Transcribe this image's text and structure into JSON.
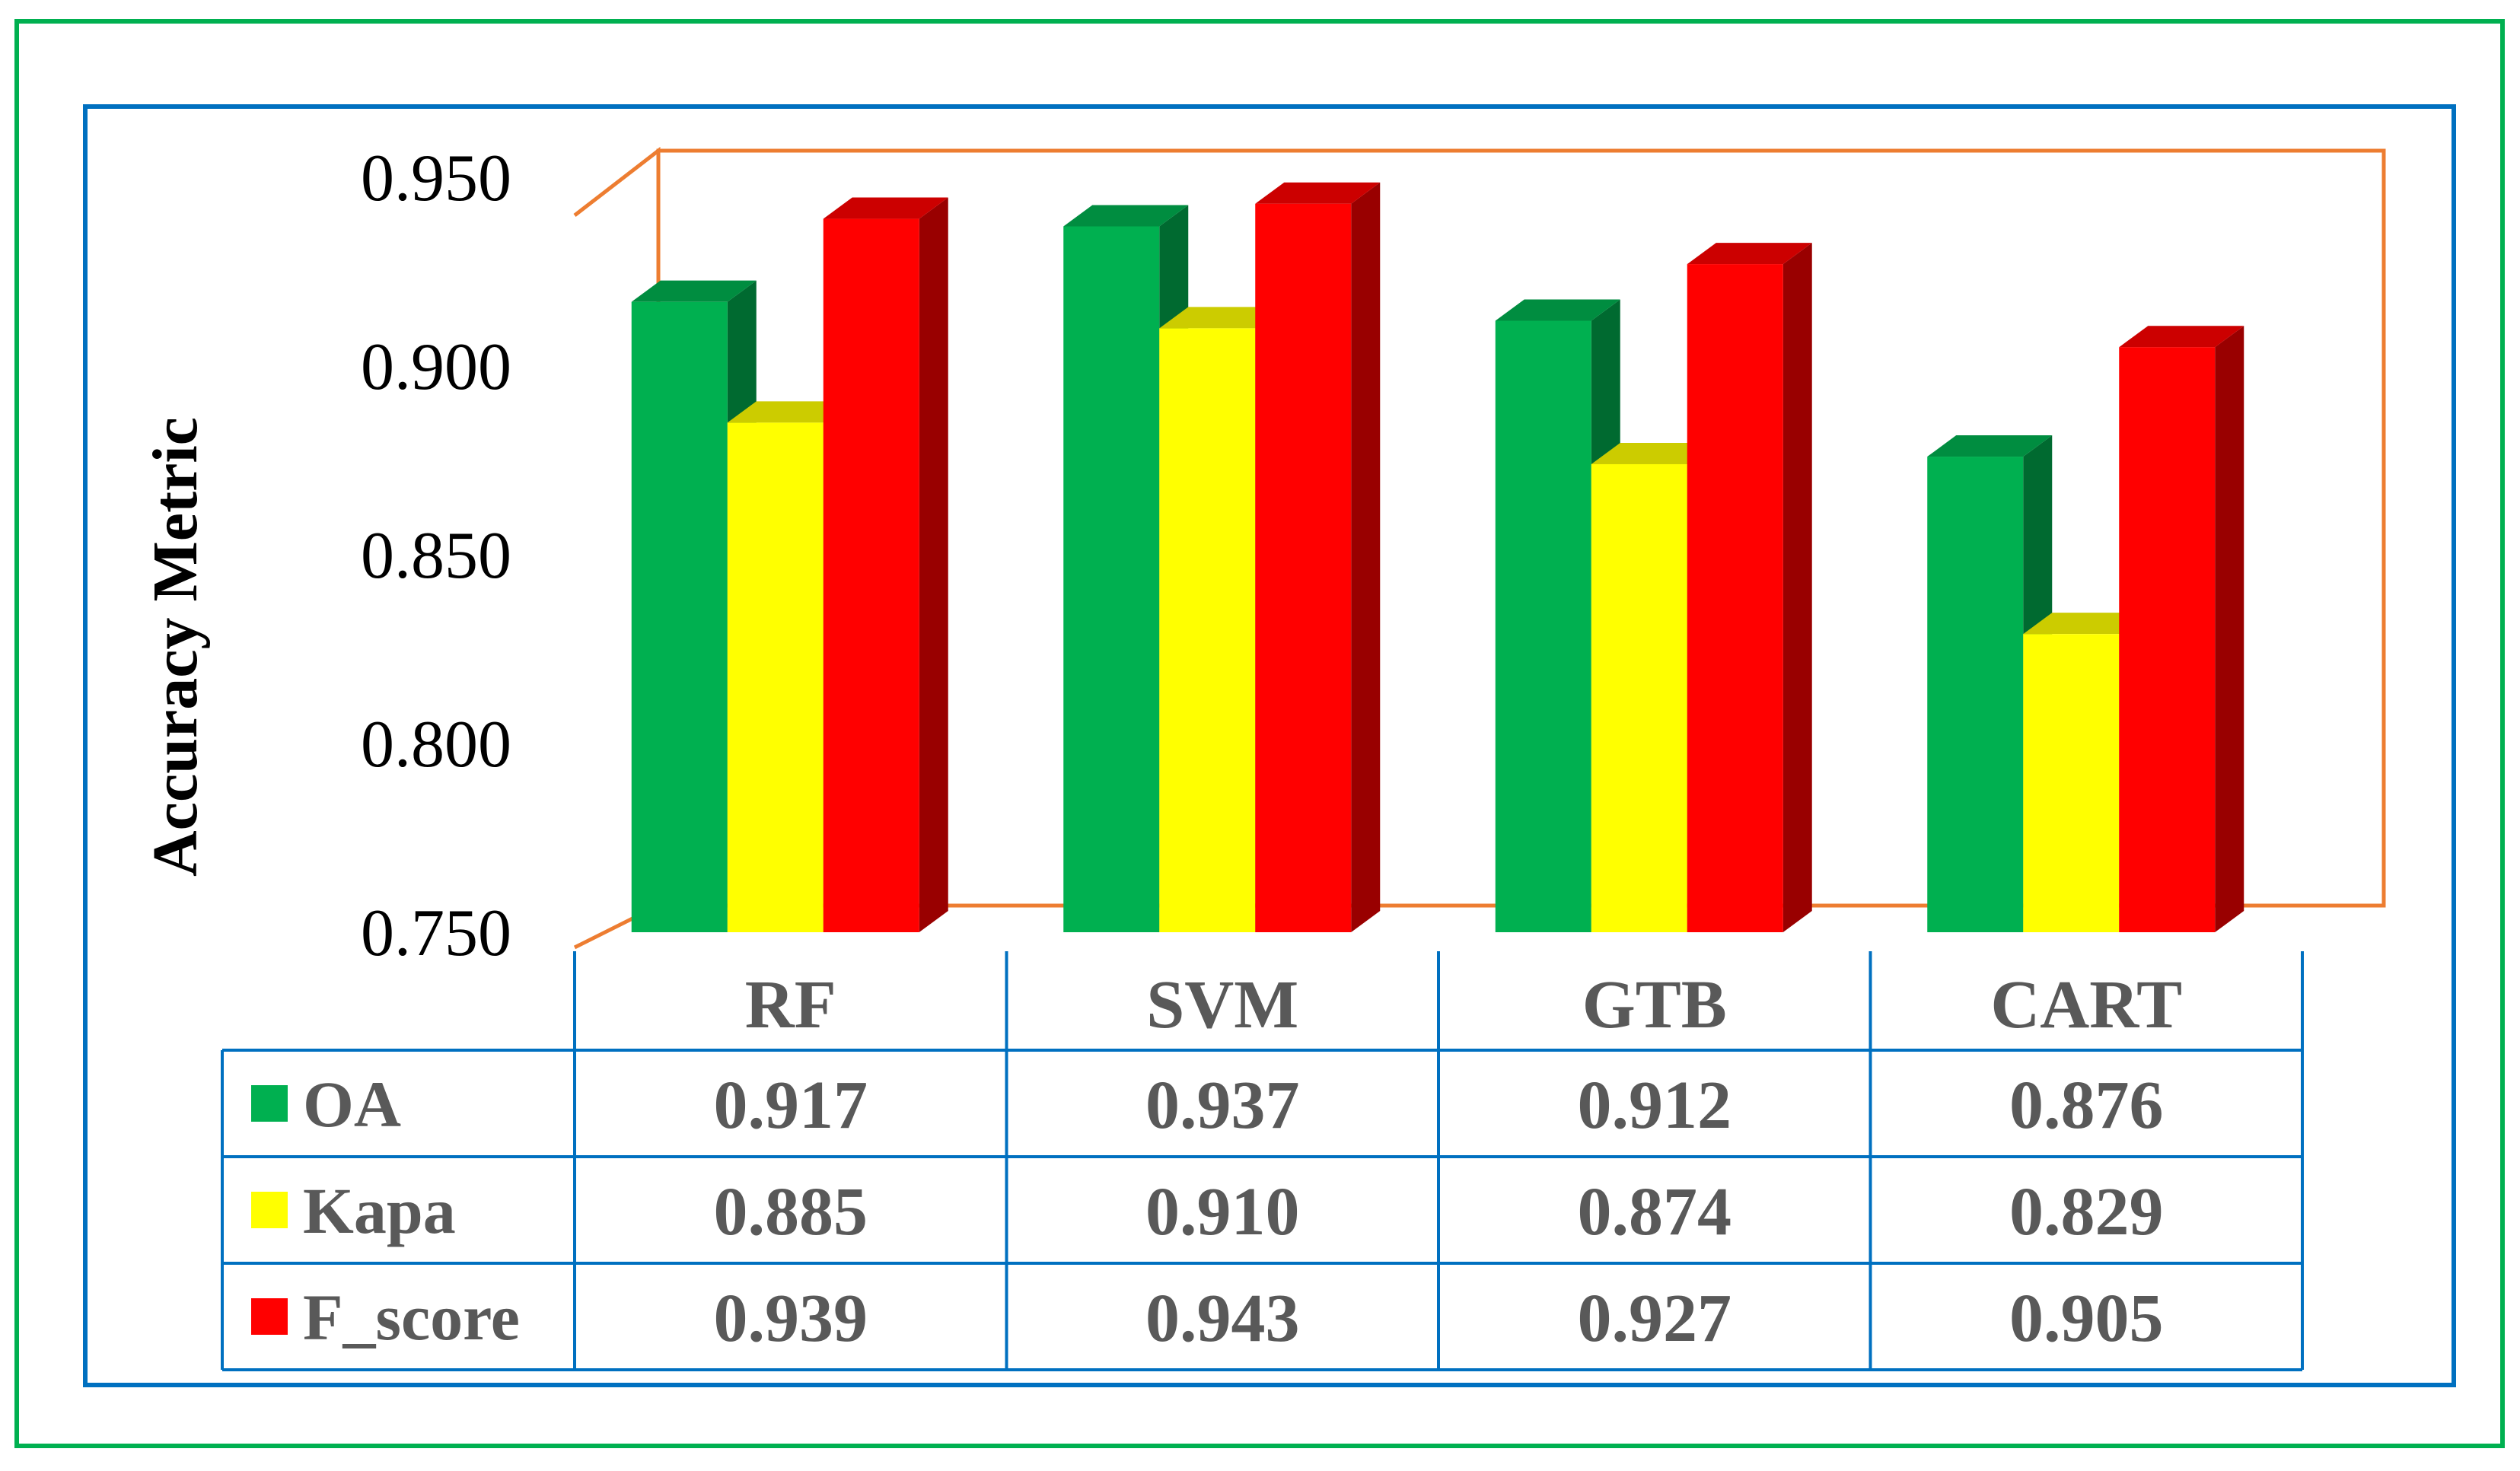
{
  "chart_data": {
    "type": "bar",
    "title": "",
    "xlabel": "",
    "ylabel": "Accuracy Metric",
    "ylim": [
      0.75,
      0.95
    ],
    "yticks": [
      "0.750",
      "0.800",
      "0.850",
      "0.900",
      "0.950"
    ],
    "categories": [
      "RF",
      "SVM",
      "GTB",
      "CART"
    ],
    "series": [
      {
        "name": "OA",
        "color": "#00B050",
        "values": [
          0.917,
          0.937,
          0.912,
          0.876
        ],
        "labels": [
          "0.917",
          "0.937",
          "0.912",
          "0.876"
        ]
      },
      {
        "name": "Kapa",
        "color": "#FFFF00",
        "values": [
          0.885,
          0.91,
          0.874,
          0.829
        ],
        "labels": [
          "0.885",
          "0.910",
          "0.874",
          "0.829"
        ]
      },
      {
        "name": "F_score",
        "color": "#FF0000",
        "values": [
          0.939,
          0.943,
          0.927,
          0.905
        ],
        "labels": [
          "0.939",
          "0.943",
          "0.927",
          "0.905"
        ]
      }
    ],
    "legend_position": "data-table",
    "grid": false,
    "frame_colors": {
      "outer": "#00B050",
      "inner": "#0070C0",
      "plot_walls": "#ED7D31",
      "table_lines": "#0070C0"
    }
  }
}
